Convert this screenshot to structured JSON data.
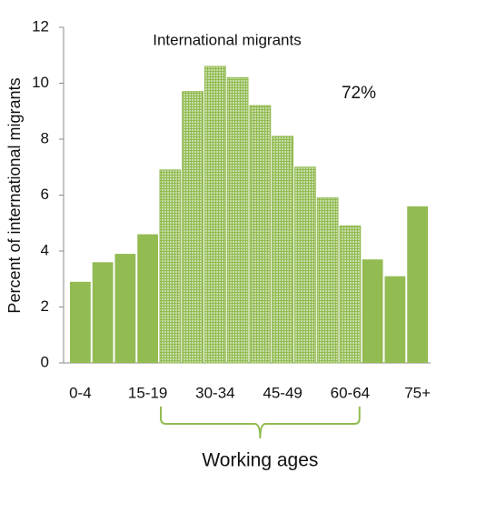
{
  "chart_data": {
    "type": "bar",
    "title": "International migrants",
    "y_label": "Percent of international migrants",
    "annotation": "72%",
    "categories": [
      "0-4",
      null,
      null,
      "15-19",
      null,
      null,
      "30-34",
      null,
      null,
      "45-49",
      null,
      null,
      "60-64",
      null,
      null,
      "75+"
    ],
    "values": [
      2.9,
      3.6,
      3.9,
      4.6,
      6.9,
      9.7,
      10.6,
      10.2,
      9.2,
      8.1,
      7.0,
      5.9,
      4.9,
      3.7,
      3.1,
      5.6
    ],
    "color": "#92bb52",
    "highlight_range": [
      4,
      12
    ],
    "highlight_label": "Working ages",
    "ylim": [
      0,
      12
    ],
    "yticks": [
      0,
      2,
      4,
      6,
      8,
      10,
      12
    ]
  }
}
